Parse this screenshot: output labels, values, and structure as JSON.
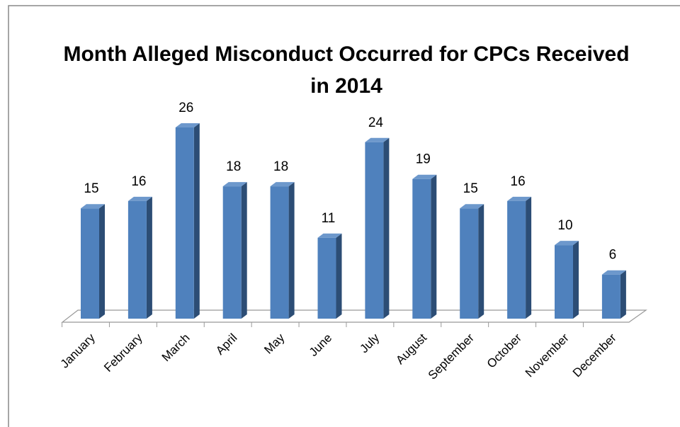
{
  "chart_data": {
    "type": "bar",
    "title_lines": [
      "Month Alleged Misconduct Occurred for CPCs Received",
      "in 2014"
    ],
    "categories": [
      "January",
      "February",
      "March",
      "April",
      "May",
      "June",
      "July",
      "August",
      "September",
      "October",
      "November",
      "December"
    ],
    "values": [
      15,
      16,
      26,
      18,
      18,
      11,
      24,
      19,
      15,
      16,
      10,
      6
    ],
    "color": "#4f81bd"
  }
}
